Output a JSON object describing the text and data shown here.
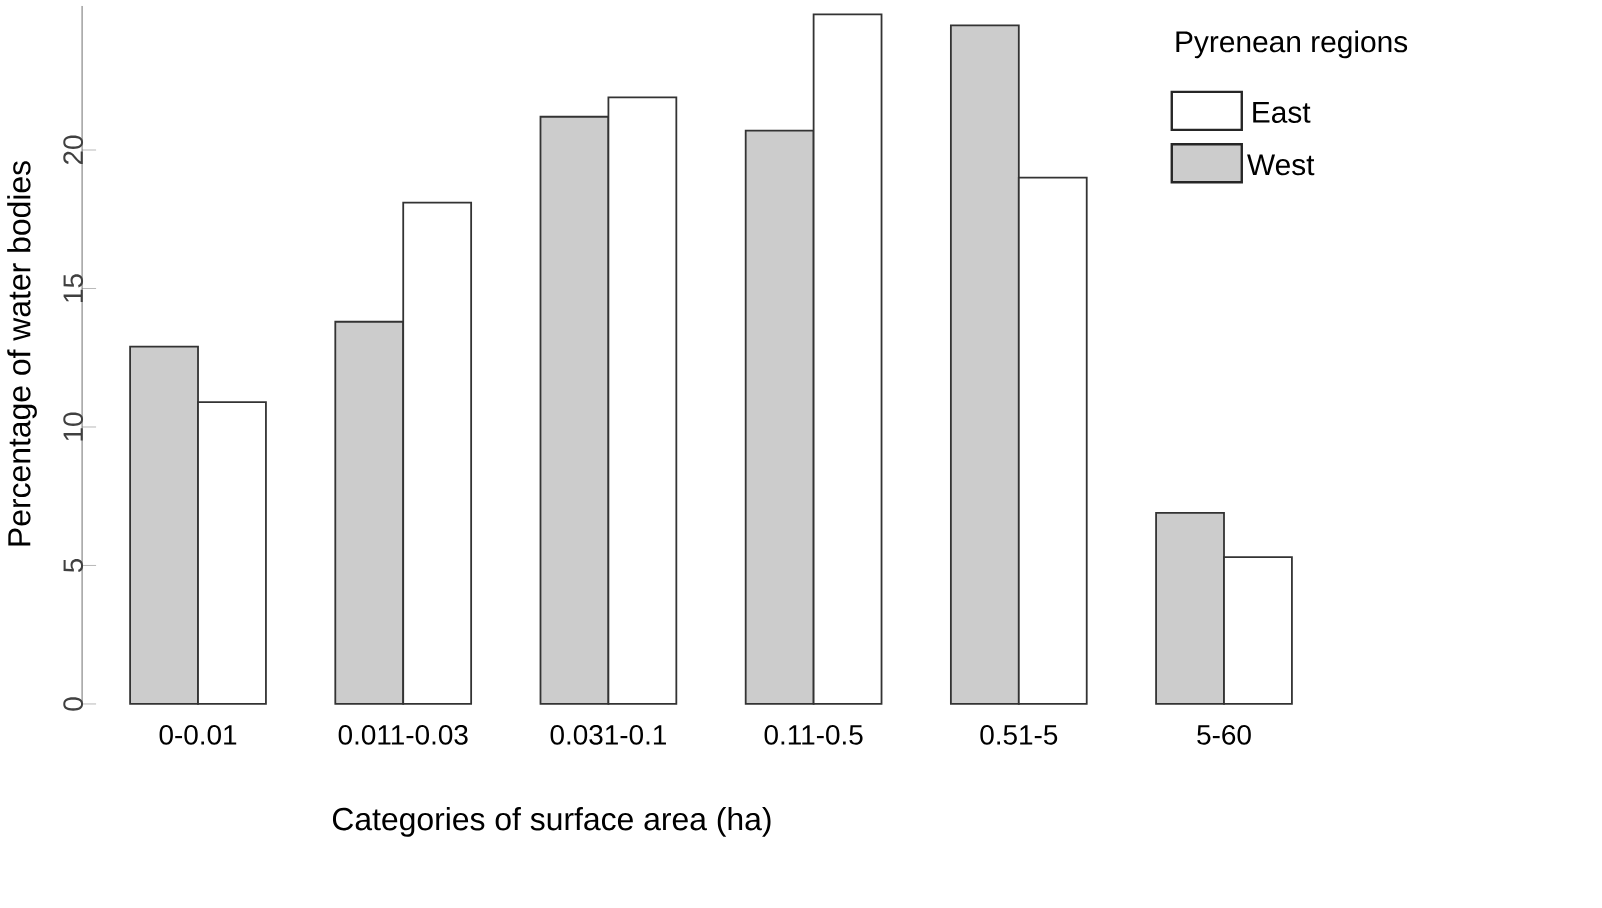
{
  "chart_data": {
    "type": "bar",
    "categories": [
      "0-0.01",
      "0.011-0.03",
      "0.031-0.1",
      "0.11-0.5",
      "0.51-5",
      "5-60"
    ],
    "series": [
      {
        "name": "East",
        "color": "#ffffff",
        "values": [
          10.9,
          18.1,
          21.9,
          24.9,
          19.0,
          5.3
        ]
      },
      {
        "name": "West",
        "color": "#cccccc",
        "values": [
          12.9,
          13.8,
          21.2,
          20.7,
          24.5,
          6.9
        ]
      }
    ],
    "xlabel": "Categories of surface area (ha)",
    "ylabel": "Percentage of water bodies",
    "legend_title": "Pyrenean regions",
    "legend": "top right",
    "ylim": [
      0,
      25.2
    ],
    "yticks": [
      0,
      5,
      10,
      15,
      20
    ],
    "grid": false
  }
}
